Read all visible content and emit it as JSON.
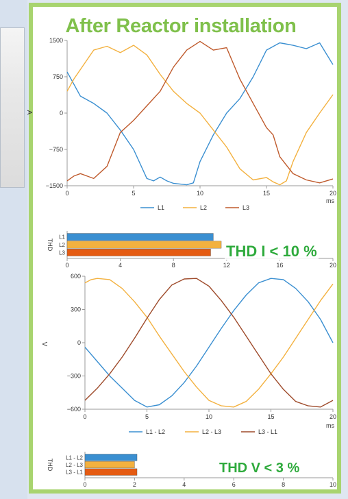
{
  "title": "After Reactor installation",
  "badges": {
    "thd_current": "THD I < 10 %",
    "thd_voltage": "THD V < 3 %"
  },
  "chart_data": [
    {
      "type": "line",
      "ylabel": "A",
      "xlabel": "ms",
      "xlim": [
        0,
        20
      ],
      "ylim": [
        -1500,
        1500
      ],
      "xticks": [
        0,
        5,
        10,
        15,
        20
      ],
      "yticks": [
        1500,
        750,
        0,
        -750,
        -1500
      ],
      "legend": "bottom",
      "series": [
        {
          "name": "L1",
          "color": "#3a8fd1",
          "x": [
            0,
            0.5,
            1,
            2,
            3,
            4,
            5,
            6,
            6.5,
            7,
            7.5,
            8,
            9,
            9.5,
            10,
            11,
            12,
            13,
            14,
            15,
            16,
            17,
            18,
            19,
            20
          ],
          "y": [
            850,
            600,
            350,
            200,
            0,
            -350,
            -750,
            -1350,
            -1400,
            -1320,
            -1400,
            -1450,
            -1480,
            -1440,
            -1000,
            -450,
            0,
            300,
            750,
            1300,
            1450,
            1400,
            1330,
            1450,
            1000
          ]
        },
        {
          "name": "L2",
          "color": "#f3b13f",
          "x": [
            0,
            0.5,
            1,
            2,
            3,
            4,
            5,
            6,
            7,
            8,
            9,
            10,
            11,
            12,
            13,
            14,
            15,
            15.5,
            16,
            16.5,
            17,
            18,
            19,
            20
          ],
          "y": [
            450,
            700,
            900,
            1300,
            1380,
            1250,
            1400,
            1200,
            800,
            450,
            200,
            0,
            -350,
            -700,
            -1150,
            -1380,
            -1330,
            -1420,
            -1480,
            -1400,
            -1000,
            -400,
            0,
            380
          ]
        },
        {
          "name": "L3",
          "color": "#bf5a2c",
          "x": [
            0,
            0.5,
            1,
            2,
            3,
            4,
            5,
            6,
            7,
            8,
            9,
            10,
            11,
            12,
            13,
            14,
            15,
            15.5,
            16,
            17,
            18,
            19,
            20
          ],
          "y": [
            -1400,
            -1300,
            -1250,
            -1350,
            -1100,
            -400,
            -150,
            150,
            450,
            950,
            1300,
            1480,
            1300,
            1350,
            700,
            200,
            -300,
            -450,
            -900,
            -1250,
            -1380,
            -1440,
            -1360
          ]
        }
      ]
    },
    {
      "type": "bar",
      "orientation": "horizontal",
      "ylabel": "THD",
      "categories": [
        "L1",
        "L2",
        "L3"
      ],
      "values": [
        11,
        11.6,
        10.8
      ],
      "colors": [
        "#3a8fd1",
        "#f3b13f",
        "#e55b12"
      ],
      "xlim": [
        0,
        20
      ],
      "xticks": [
        0,
        4,
        8,
        12,
        16,
        20
      ]
    },
    {
      "type": "line",
      "ylabel": "V",
      "xlabel": "ms",
      "xlim": [
        0,
        20
      ],
      "ylim": [
        -600,
        600
      ],
      "xticks": [
        0,
        5,
        10,
        15,
        20
      ],
      "yticks": [
        600,
        300,
        0,
        -300,
        -600
      ],
      "legend": "bottom",
      "series": [
        {
          "name": "L1 - L2",
          "color": "#3a8fd1",
          "x": [
            0,
            1,
            2,
            3,
            4,
            5,
            6,
            7,
            8,
            9,
            10,
            11,
            12,
            13,
            14,
            15,
            16,
            17,
            18,
            19,
            20
          ],
          "y": [
            -40,
            -170,
            -300,
            -410,
            -520,
            -580,
            -560,
            -480,
            -360,
            -210,
            -40,
            130,
            290,
            430,
            540,
            580,
            570,
            490,
            370,
            210,
            0
          ]
        },
        {
          "name": "L2 - L3",
          "color": "#f3b13f",
          "x": [
            0,
            0.5,
            1,
            2,
            3,
            4,
            5,
            6,
            7,
            8,
            9,
            10,
            11,
            12,
            13,
            14,
            15,
            16,
            17,
            18,
            19,
            20
          ],
          "y": [
            540,
            570,
            580,
            570,
            490,
            370,
            230,
            60,
            -100,
            -260,
            -400,
            -520,
            -570,
            -580,
            -530,
            -420,
            -280,
            -130,
            40,
            210,
            380,
            530
          ]
        },
        {
          "name": "L3 - L1",
          "color": "#9e4a2a",
          "x": [
            0,
            1,
            2,
            3,
            4,
            5,
            6,
            7,
            8,
            9,
            10,
            11,
            12,
            13,
            14,
            15,
            16,
            17,
            18,
            19,
            20
          ],
          "y": [
            -520,
            -410,
            -280,
            -130,
            40,
            220,
            390,
            520,
            575,
            580,
            510,
            380,
            230,
            60,
            -110,
            -280,
            -420,
            -530,
            -570,
            -580,
            -520
          ]
        }
      ]
    },
    {
      "type": "bar",
      "orientation": "horizontal",
      "ylabel": "THD",
      "categories": [
        "L1 - L2",
        "L2 - L3",
        "L3 - L1"
      ],
      "values": [
        2.1,
        2.0,
        2.1
      ],
      "colors": [
        "#3a8fd1",
        "#f3b13f",
        "#e55b12"
      ],
      "xlim": [
        0,
        10
      ],
      "xticks": [
        0,
        2,
        4,
        6,
        8,
        10
      ]
    }
  ]
}
